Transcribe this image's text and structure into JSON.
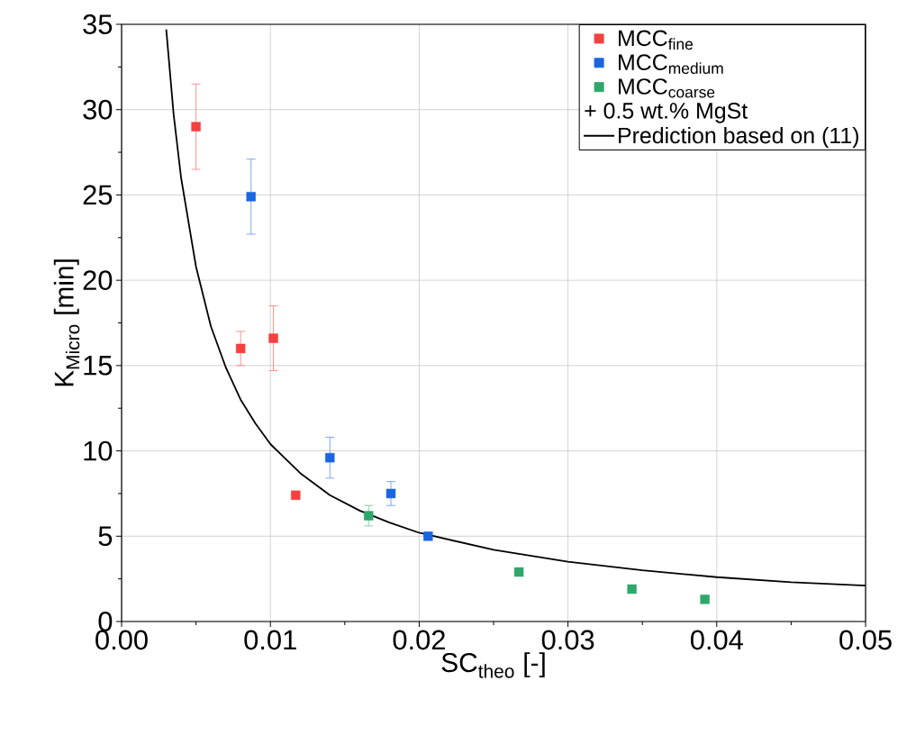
{
  "chart_data": {
    "type": "scatter",
    "xlabel": "SC$_{theo}$ [-]",
    "ylabel": "K$_{Micro}$ [min]",
    "xlim": [
      0,
      0.05
    ],
    "ylim": [
      0,
      35
    ],
    "xticks": [
      {
        "value": 0,
        "label": "0.00"
      },
      {
        "value": 0.01,
        "label": "0.01"
      },
      {
        "value": 0.02,
        "label": "0.02"
      },
      {
        "value": 0.03,
        "label": "0.03"
      },
      {
        "value": 0.04,
        "label": "0.04"
      },
      {
        "value": 0.05,
        "label": "0.05"
      }
    ],
    "yticks": [
      0,
      5,
      10,
      15,
      20,
      25,
      30,
      35
    ],
    "grid": true,
    "legend": "top right",
    "marker": "square",
    "annotations": [
      "+ 0.5 wt.% MgSt"
    ],
    "series": [
      {
        "name": "MCC$_{fine}$",
        "color": "#f44040",
        "x": [
          0.005,
          0.008,
          0.0102,
          0.0117
        ],
        "values": [
          29.0,
          16.0,
          16.6,
          7.4
        ],
        "errors": [
          2.5,
          1.0,
          1.9,
          null
        ]
      },
      {
        "name": "MCC$_{medium}$",
        "color": "#1a66e0",
        "x": [
          0.0087,
          0.014,
          0.0181,
          0.0206
        ],
        "values": [
          24.9,
          9.6,
          7.5,
          5.0
        ],
        "errors": [
          2.2,
          1.2,
          0.7,
          null
        ]
      },
      {
        "name": "MCC$_{coarse}$",
        "color": "#2ea86a",
        "x": [
          0.0166,
          0.0267,
          0.0343,
          0.0392
        ],
        "values": [
          6.2,
          2.9,
          1.9,
          1.3
        ],
        "errors": [
          0.6,
          null,
          null,
          null
        ]
      },
      {
        "name": "Prediction based on (11)",
        "type": "line",
        "color": "#000000",
        "marker": "none",
        "line_style": "solid",
        "x": [
          0.003,
          0.0035,
          0.004,
          0.005,
          0.006,
          0.007,
          0.008,
          0.009,
          0.01,
          0.012,
          0.014,
          0.016,
          0.018,
          0.02,
          0.025,
          0.03,
          0.035,
          0.04,
          0.045,
          0.05
        ],
        "values": [
          34.7,
          29.7,
          26.0,
          20.8,
          17.3,
          14.9,
          13.0,
          11.6,
          10.4,
          8.7,
          7.4,
          6.5,
          5.8,
          5.2,
          4.2,
          3.5,
          3.0,
          2.6,
          2.3,
          2.1
        ]
      }
    ]
  }
}
